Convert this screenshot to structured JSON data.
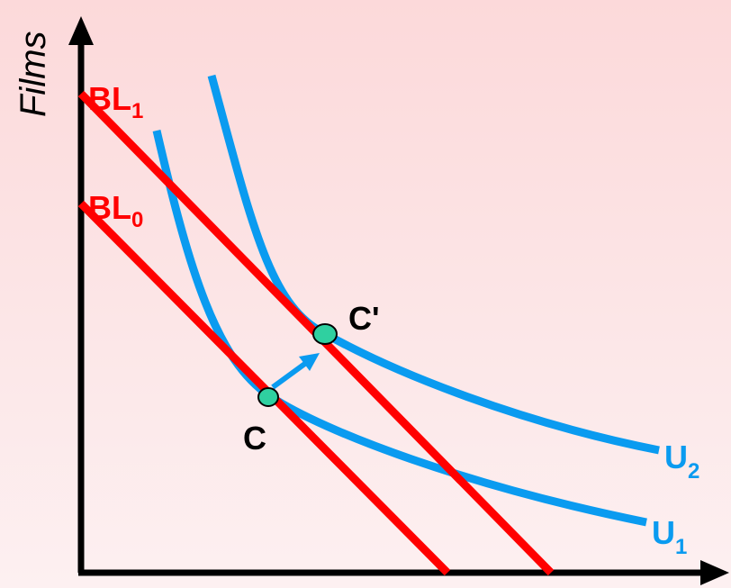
{
  "axes": {
    "y_label": "Films",
    "x_label": ""
  },
  "budget_lines": [
    {
      "id": "bl1",
      "label": "BL",
      "subscript": "1",
      "color": "#ff0000"
    },
    {
      "id": "bl0",
      "label": "BL",
      "subscript": "0",
      "color": "#ff0000"
    }
  ],
  "indifference_curves": [
    {
      "id": "u1",
      "label": "U",
      "subscript": "1",
      "color": "#0a9bf0"
    },
    {
      "id": "u2",
      "label": "U",
      "subscript": "2",
      "color": "#0a9bf0"
    }
  ],
  "points": [
    {
      "id": "c",
      "label": "C",
      "color": "#2fd0a0"
    },
    {
      "id": "c-prime",
      "label": "C'",
      "color": "#2fd0a0"
    }
  ],
  "shift_arrow": {
    "from": "C",
    "to": "C'",
    "color": "#0a9bf0"
  },
  "colors": {
    "axis": "#000000",
    "budget_line": "#ff0000",
    "indifference_curve": "#0a9bf0",
    "point_fill": "#2fd0a0",
    "label_text": "#ff0000",
    "curve_label_text": "#0a9bf0"
  }
}
